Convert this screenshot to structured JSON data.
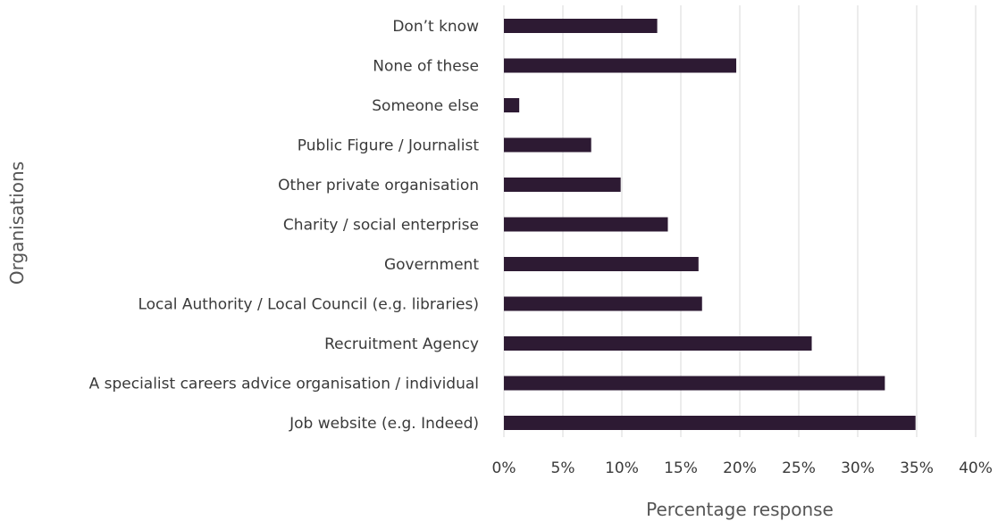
{
  "chart_data": {
    "type": "bar",
    "orientation": "horizontal",
    "categories": [
      "Don’t know",
      "None of these",
      "Someone else",
      "Public Figure / Journalist",
      "Other private organisation",
      "Charity / social enterprise",
      "Government",
      "Local Authority / Local Council (e.g. libraries)",
      "Recruitment Agency",
      "A specialist careers advice organisation / individual",
      "Job website (e.g. Indeed)"
    ],
    "values": [
      13.0,
      19.7,
      1.3,
      7.4,
      9.9,
      13.9,
      16.5,
      16.8,
      26.1,
      32.3,
      34.9
    ],
    "xlabel": "Percentage response",
    "ylabel": "Organisations",
    "xlim": [
      0,
      40
    ],
    "xticks": [
      0,
      5,
      10,
      15,
      20,
      25,
      30,
      35,
      40
    ],
    "xtick_labels": [
      "0%",
      "5%",
      "10%",
      "15%",
      "20%",
      "25%",
      "30%",
      "35%",
      "40%"
    ],
    "grid": "vertical",
    "legend": "none",
    "bar_color": "#2d1a33"
  }
}
